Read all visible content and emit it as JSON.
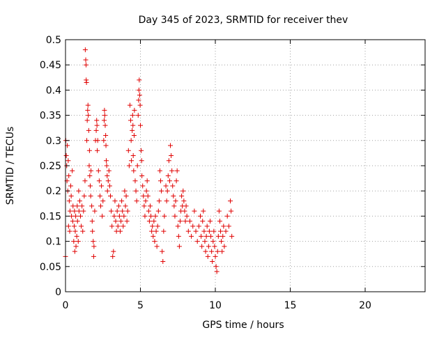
{
  "chart_data": {
    "type": "scatter",
    "title": "Day 345 of 2023, SRMTID for receiver thev",
    "xlabel": "GPS time / hours",
    "ylabel": "SRMTID / TECUs",
    "xlim": [
      0,
      24
    ],
    "ylim": [
      0,
      0.5
    ],
    "x_ticks": [
      0,
      5,
      10,
      15,
      20
    ],
    "y_ticks": [
      0,
      0.05,
      0.1,
      0.15,
      0.2,
      0.25,
      0.3,
      0.35,
      0.4,
      0.45,
      0.5
    ],
    "x_tick_labels": [
      "0",
      "5",
      "10",
      "15",
      "20"
    ],
    "y_tick_labels": [
      "0",
      "0.05",
      "0.1",
      "0.15",
      "0.2",
      "0.25",
      "0.3",
      "0.35",
      "0.4",
      "0.45",
      "0.5"
    ],
    "grid": true,
    "marker": "+",
    "point_color": "#e00000",
    "points": [
      [
        0.0,
        0.07
      ],
      [
        0.02,
        0.3
      ],
      [
        0.05,
        0.27
      ],
      [
        0.08,
        0.25
      ],
      [
        0.1,
        0.22
      ],
      [
        0.12,
        0.29
      ],
      [
        0.15,
        0.2
      ],
      [
        0.18,
        0.26
      ],
      [
        0.2,
        0.13
      ],
      [
        0.22,
        0.23
      ],
      [
        0.25,
        0.18
      ],
      [
        0.28,
        0.12
      ],
      [
        0.3,
        0.16
      ],
      [
        0.35,
        0.21
      ],
      [
        0.38,
        0.19
      ],
      [
        0.4,
        0.15
      ],
      [
        0.45,
        0.24
      ],
      [
        0.48,
        0.14
      ],
      [
        0.5,
        0.17
      ],
      [
        0.55,
        0.1
      ],
      [
        0.58,
        0.13
      ],
      [
        0.6,
        0.16
      ],
      [
        0.62,
        0.08
      ],
      [
        0.65,
        0.12
      ],
      [
        0.68,
        0.15
      ],
      [
        0.7,
        0.09
      ],
      [
        0.75,
        0.11
      ],
      [
        0.78,
        0.17
      ],
      [
        0.8,
        0.14
      ],
      [
        0.85,
        0.1
      ],
      [
        0.88,
        0.2
      ],
      [
        0.9,
        0.16
      ],
      [
        0.95,
        0.18
      ],
      [
        1.0,
        0.15
      ],
      [
        1.05,
        0.13
      ],
      [
        1.1,
        0.17
      ],
      [
        1.15,
        0.12
      ],
      [
        1.2,
        0.16
      ],
      [
        1.25,
        0.19
      ],
      [
        1.3,
        0.22
      ],
      [
        1.32,
        0.48
      ],
      [
        1.35,
        0.46
      ],
      [
        1.37,
        0.45
      ],
      [
        1.38,
        0.42
      ],
      [
        1.4,
        0.415
      ],
      [
        1.42,
        0.3
      ],
      [
        1.45,
        0.34
      ],
      [
        1.48,
        0.36
      ],
      [
        1.5,
        0.37
      ],
      [
        1.52,
        0.35
      ],
      [
        1.55,
        0.32
      ],
      [
        1.58,
        0.25
      ],
      [
        1.6,
        0.28
      ],
      [
        1.62,
        0.23
      ],
      [
        1.65,
        0.21
      ],
      [
        1.68,
        0.19
      ],
      [
        1.7,
        0.24
      ],
      [
        1.75,
        0.17
      ],
      [
        1.78,
        0.14
      ],
      [
        1.8,
        0.12
      ],
      [
        1.85,
        0.1
      ],
      [
        1.88,
        0.07
      ],
      [
        1.9,
        0.09
      ],
      [
        1.95,
        0.16
      ],
      [
        2.0,
        0.3
      ],
      [
        2.05,
        0.32
      ],
      [
        2.08,
        0.34
      ],
      [
        2.1,
        0.33
      ],
      [
        2.12,
        0.28
      ],
      [
        2.15,
        0.3
      ],
      [
        2.2,
        0.24
      ],
      [
        2.25,
        0.22
      ],
      [
        2.3,
        0.19
      ],
      [
        2.35,
        0.17
      ],
      [
        2.4,
        0.21
      ],
      [
        2.45,
        0.15
      ],
      [
        2.5,
        0.18
      ],
      [
        2.55,
        0.3
      ],
      [
        2.58,
        0.34
      ],
      [
        2.6,
        0.36
      ],
      [
        2.62,
        0.35
      ],
      [
        2.65,
        0.33
      ],
      [
        2.68,
        0.31
      ],
      [
        2.7,
        0.29
      ],
      [
        2.72,
        0.26
      ],
      [
        2.75,
        0.25
      ],
      [
        2.78,
        0.23
      ],
      [
        2.8,
        0.2
      ],
      [
        2.85,
        0.22
      ],
      [
        2.9,
        0.24
      ],
      [
        2.95,
        0.21
      ],
      [
        3.0,
        0.19
      ],
      [
        3.05,
        0.16
      ],
      [
        3.1,
        0.13
      ],
      [
        3.15,
        0.07
      ],
      [
        3.2,
        0.08
      ],
      [
        3.25,
        0.15
      ],
      [
        3.3,
        0.18
      ],
      [
        3.35,
        0.14
      ],
      [
        3.4,
        0.12
      ],
      [
        3.45,
        0.16
      ],
      [
        3.5,
        0.13
      ],
      [
        3.55,
        0.17
      ],
      [
        3.6,
        0.15
      ],
      [
        3.65,
        0.12
      ],
      [
        3.7,
        0.14
      ],
      [
        3.75,
        0.18
      ],
      [
        3.8,
        0.16
      ],
      [
        3.85,
        0.13
      ],
      [
        3.9,
        0.15
      ],
      [
        3.95,
        0.2
      ],
      [
        4.0,
        0.17
      ],
      [
        4.05,
        0.19
      ],
      [
        4.1,
        0.14
      ],
      [
        4.15,
        0.16
      ],
      [
        4.2,
        0.28
      ],
      [
        4.25,
        0.25
      ],
      [
        4.3,
        0.37
      ],
      [
        4.35,
        0.34
      ],
      [
        4.38,
        0.3
      ],
      [
        4.4,
        0.26
      ],
      [
        4.45,
        0.32
      ],
      [
        4.48,
        0.35
      ],
      [
        4.5,
        0.33
      ],
      [
        4.52,
        0.27
      ],
      [
        4.55,
        0.24
      ],
      [
        4.58,
        0.31
      ],
      [
        4.6,
        0.36
      ],
      [
        4.65,
        0.22
      ],
      [
        4.7,
        0.2
      ],
      [
        4.75,
        0.18
      ],
      [
        4.8,
        0.25
      ],
      [
        4.85,
        0.35
      ],
      [
        4.88,
        0.38
      ],
      [
        4.9,
        0.4
      ],
      [
        4.92,
        0.42
      ],
      [
        4.95,
        0.39
      ],
      [
        4.98,
        0.37
      ],
      [
        5.0,
        0.33
      ],
      [
        5.05,
        0.28
      ],
      [
        5.08,
        0.26
      ],
      [
        5.1,
        0.23
      ],
      [
        5.15,
        0.21
      ],
      [
        5.2,
        0.19
      ],
      [
        5.25,
        0.17
      ],
      [
        5.3,
        0.15
      ],
      [
        5.35,
        0.18
      ],
      [
        5.4,
        0.2
      ],
      [
        5.45,
        0.22
      ],
      [
        5.5,
        0.19
      ],
      [
        5.55,
        0.16
      ],
      [
        5.6,
        0.14
      ],
      [
        5.65,
        0.17
      ],
      [
        5.7,
        0.15
      ],
      [
        5.75,
        0.12
      ],
      [
        5.8,
        0.13
      ],
      [
        5.85,
        0.11
      ],
      [
        5.9,
        0.14
      ],
      [
        5.95,
        0.1
      ],
      [
        6.0,
        0.15
      ],
      [
        6.05,
        0.12
      ],
      [
        6.1,
        0.09
      ],
      [
        6.15,
        0.13
      ],
      [
        6.2,
        0.16
      ],
      [
        6.25,
        0.18
      ],
      [
        6.3,
        0.24
      ],
      [
        6.35,
        0.22
      ],
      [
        6.4,
        0.2
      ],
      [
        6.45,
        0.08
      ],
      [
        6.5,
        0.06
      ],
      [
        6.55,
        0.12
      ],
      [
        6.6,
        0.15
      ],
      [
        6.7,
        0.21
      ],
      [
        6.75,
        0.18
      ],
      [
        6.8,
        0.2
      ],
      [
        6.85,
        0.23
      ],
      [
        6.9,
        0.26
      ],
      [
        6.95,
        0.22
      ],
      [
        7.0,
        0.29
      ],
      [
        7.05,
        0.27
      ],
      [
        7.1,
        0.24
      ],
      [
        7.15,
        0.21
      ],
      [
        7.2,
        0.19
      ],
      [
        7.25,
        0.17
      ],
      [
        7.3,
        0.15
      ],
      [
        7.35,
        0.18
      ],
      [
        7.4,
        0.22
      ],
      [
        7.45,
        0.24
      ],
      [
        7.5,
        0.13
      ],
      [
        7.55,
        0.11
      ],
      [
        7.6,
        0.09
      ],
      [
        7.65,
        0.14
      ],
      [
        7.7,
        0.16
      ],
      [
        7.75,
        0.19
      ],
      [
        7.8,
        0.17
      ],
      [
        7.85,
        0.2
      ],
      [
        7.9,
        0.18
      ],
      [
        7.95,
        0.16
      ],
      [
        8.0,
        0.14
      ],
      [
        8.05,
        0.17
      ],
      [
        8.1,
        0.15
      ],
      [
        8.2,
        0.12
      ],
      [
        8.3,
        0.14
      ],
      [
        8.4,
        0.11
      ],
      [
        8.5,
        0.13
      ],
      [
        8.6,
        0.16
      ],
      [
        8.7,
        0.12
      ],
      [
        8.8,
        0.1
      ],
      [
        8.9,
        0.13
      ],
      [
        9.0,
        0.15
      ],
      [
        9.05,
        0.11
      ],
      [
        9.1,
        0.09
      ],
      [
        9.15,
        0.14
      ],
      [
        9.2,
        0.16
      ],
      [
        9.25,
        0.12
      ],
      [
        9.3,
        0.1
      ],
      [
        9.35,
        0.08
      ],
      [
        9.4,
        0.11
      ],
      [
        9.45,
        0.13
      ],
      [
        9.5,
        0.07
      ],
      [
        9.55,
        0.09
      ],
      [
        9.6,
        0.12
      ],
      [
        9.65,
        0.14
      ],
      [
        9.7,
        0.11
      ],
      [
        9.75,
        0.08
      ],
      [
        9.8,
        0.06
      ],
      [
        9.85,
        0.1
      ],
      [
        9.9,
        0.12
      ],
      [
        9.95,
        0.09
      ],
      [
        10.0,
        0.07
      ],
      [
        10.05,
        0.05
      ],
      [
        10.1,
        0.04
      ],
      [
        10.15,
        0.08
      ],
      [
        10.2,
        0.11
      ],
      [
        10.25,
        0.16
      ],
      [
        10.3,
        0.14
      ],
      [
        10.35,
        0.12
      ],
      [
        10.4,
        0.1
      ],
      [
        10.45,
        0.08
      ],
      [
        10.5,
        0.11
      ],
      [
        10.55,
        0.13
      ],
      [
        10.6,
        0.09
      ],
      [
        10.7,
        0.12
      ],
      [
        10.8,
        0.15
      ],
      [
        10.9,
        0.13
      ],
      [
        11.0,
        0.18
      ],
      [
        11.05,
        0.16
      ],
      [
        11.1,
        0.11
      ]
    ]
  }
}
